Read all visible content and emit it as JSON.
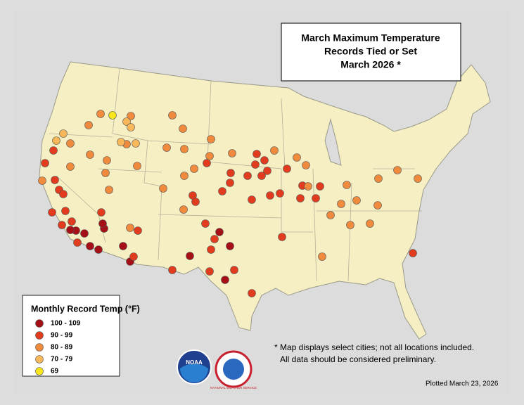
{
  "title": {
    "lines": [
      "March Maximum Temperature",
      "Records Tied or Set",
      "March 2026 *"
    ]
  },
  "legend": {
    "title": "Monthly Record Temp (°F)",
    "items": [
      {
        "label": "100 - 109",
        "color": "#a50f15"
      },
      {
        "label": "90 - 99",
        "color": "#e23b1d"
      },
      {
        "label": "80 - 89",
        "color": "#f08a3c"
      },
      {
        "label": "70 - 79",
        "color": "#f8b85a"
      },
      {
        "label": "69",
        "color": "#f6e61a"
      }
    ]
  },
  "footnote": [
    "* Map displays select cities; not all locations included.",
    "All data should be considered preliminary."
  ],
  "plotted": "Plotted March 23, 2026",
  "logos": {
    "noaa": "NOAA",
    "nws": "NATIONAL WEATHER SERVICE"
  }
}
